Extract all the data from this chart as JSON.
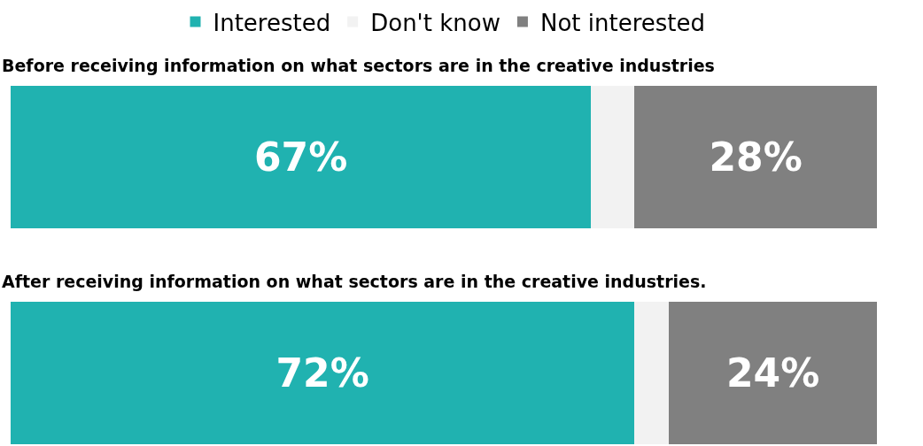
{
  "chart_data": {
    "type": "bar",
    "orientation": "horizontal",
    "stacked": true,
    "categories": [
      "Before receiving information on what sectors are in the creative industries",
      "After receiving information on what sectors are in the creative industries."
    ],
    "series": [
      {
        "name": "Interested",
        "color": "#20b2b0",
        "values": [
          67,
          72
        ],
        "value_labels": [
          "67%",
          "72%"
        ]
      },
      {
        "name": "Don't know",
        "color": "#f2f2f2",
        "values": [
          5,
          4
        ]
      },
      {
        "name": "Not interested",
        "color": "#808080",
        "values": [
          28,
          24
        ],
        "value_labels": [
          "28%",
          "24%"
        ]
      }
    ],
    "legend": "top",
    "tick_labels": false
  }
}
